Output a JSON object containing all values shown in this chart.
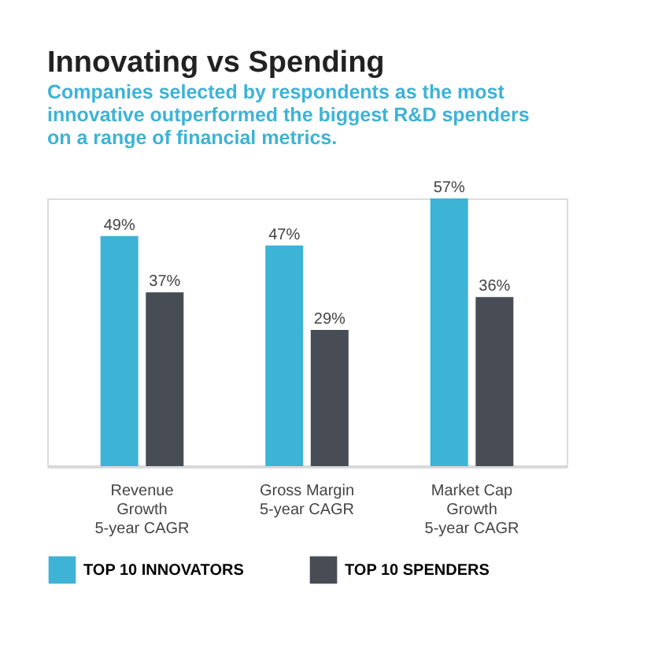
{
  "chart_data": {
    "type": "bar",
    "title": "Innovating vs Spending",
    "subtitle": "Companies selected by respondents as the most\ninnovative outperformed the biggest R&D spenders\non a range of financial metrics.",
    "categories": [
      "Revenue\nGrowth\n5-year CAGR",
      "Gross Margin\n5-year CAGR",
      "Market Cap\nGrowth\n5-year CAGR"
    ],
    "series": [
      {
        "name": "TOP 10 INNOVATORS",
        "color": "#3db3d6",
        "values": [
          49,
          47,
          57
        ],
        "value_labels": [
          "49%",
          "47%",
          "57%"
        ]
      },
      {
        "name": "TOP 10 SPENDERS",
        "color": "#474c55",
        "values": [
          37,
          29,
          36
        ],
        "value_labels": [
          "37%",
          "29%",
          "36%"
        ]
      }
    ],
    "legend": "bottom",
    "grid": false,
    "tick_labels": "x"
  }
}
